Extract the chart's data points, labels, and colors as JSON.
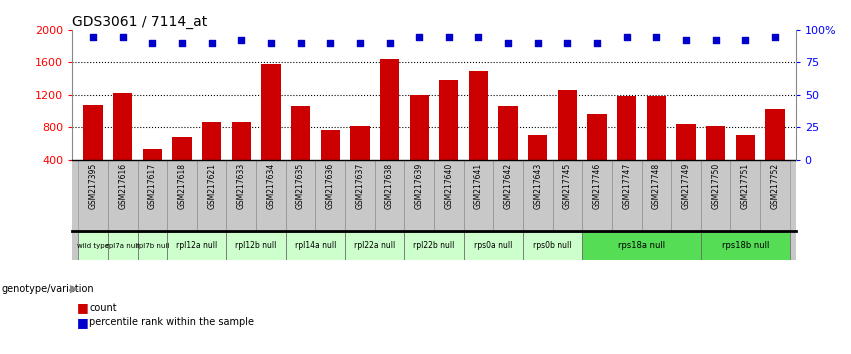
{
  "title": "GDS3061 / 7114_at",
  "samples": [
    "GSM217395",
    "GSM217616",
    "GSM217617",
    "GSM217618",
    "GSM217621",
    "GSM217633",
    "GSM217634",
    "GSM217635",
    "GSM217636",
    "GSM217637",
    "GSM217638",
    "GSM217639",
    "GSM217640",
    "GSM217641",
    "GSM217642",
    "GSM217643",
    "GSM217745",
    "GSM217746",
    "GSM217747",
    "GSM217748",
    "GSM217749",
    "GSM217750",
    "GSM217751",
    "GSM217752"
  ],
  "counts": [
    1080,
    1220,
    530,
    680,
    860,
    870,
    1580,
    1060,
    760,
    810,
    1640,
    1200,
    1380,
    1500,
    1060,
    700,
    1260,
    960,
    1180,
    1180,
    840,
    820,
    700,
    1020
  ],
  "percentile_y": [
    95,
    95,
    90,
    90,
    90,
    92,
    90,
    90,
    90,
    90,
    90,
    95,
    95,
    95,
    90,
    90,
    90,
    90,
    95,
    95,
    92,
    92,
    92,
    95
  ],
  "genotype_groups": [
    {
      "label": "wild type",
      "start": 0,
      "end": 1,
      "color": "#ccffcc"
    },
    {
      "label": "rpl7a null",
      "start": 1,
      "end": 2,
      "color": "#ccffcc"
    },
    {
      "label": "rpl7b null",
      "start": 2,
      "end": 3,
      "color": "#ccffcc"
    },
    {
      "label": "rpl12a null",
      "start": 3,
      "end": 5,
      "color": "#ccffcc"
    },
    {
      "label": "rpl12b null",
      "start": 5,
      "end": 7,
      "color": "#ccffcc"
    },
    {
      "label": "rpl14a null",
      "start": 7,
      "end": 9,
      "color": "#ccffcc"
    },
    {
      "label": "rpl22a null",
      "start": 9,
      "end": 11,
      "color": "#ccffcc"
    },
    {
      "label": "rpl22b null",
      "start": 11,
      "end": 13,
      "color": "#ccffcc"
    },
    {
      "label": "rps0a null",
      "start": 13,
      "end": 15,
      "color": "#ccffcc"
    },
    {
      "label": "rps0b null",
      "start": 15,
      "end": 17,
      "color": "#ccffcc"
    },
    {
      "label": "rps18a null",
      "start": 17,
      "end": 21,
      "color": "#55dd55"
    },
    {
      "label": "rps18b null",
      "start": 21,
      "end": 24,
      "color": "#55dd55"
    }
  ],
  "bar_color": "#cc0000",
  "dot_color": "#0000cc",
  "ylim_left": [
    400,
    2000
  ],
  "ylim_right": [
    0,
    100
  ],
  "yticks_left": [
    400,
    800,
    1200,
    1600,
    2000
  ],
  "yticks_right": [
    0,
    25,
    50,
    75,
    100
  ],
  "ytick_labels_right": [
    "0",
    "25",
    "50",
    "75",
    "100%"
  ],
  "grid_values": [
    800,
    1200,
    1600
  ],
  "bg_color_main": "#ffffff",
  "bg_color_xtick": "#c8c8c8",
  "bg_color_gt": "#c8c8c8"
}
